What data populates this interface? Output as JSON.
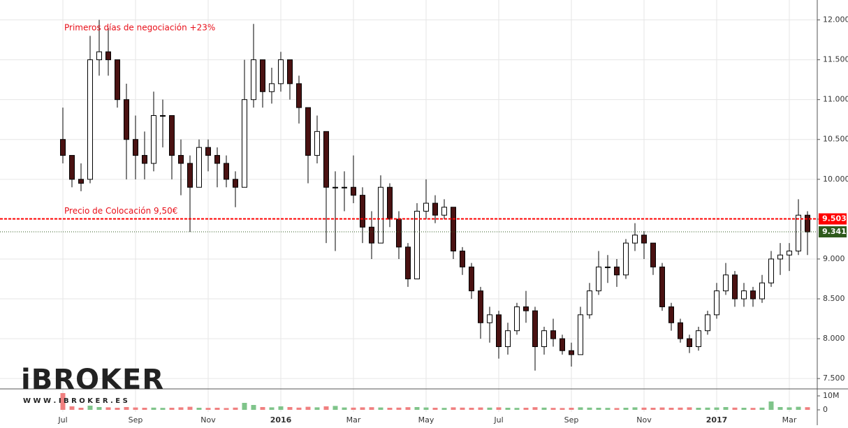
{
  "chart_data": {
    "type": "candlestick",
    "categories": [
      "Jul",
      null,
      null,
      null,
      null,
      null,
      null,
      null,
      "Sep",
      null,
      null,
      null,
      null,
      null,
      null,
      null,
      "Nov",
      null,
      null,
      null,
      null,
      null,
      null,
      null,
      "2016",
      null,
      null,
      null,
      null,
      null,
      null,
      null,
      "Mar",
      null,
      null,
      null,
      null,
      null,
      null,
      null,
      "May",
      null,
      null,
      null,
      null,
      null,
      null,
      null,
      "Jul",
      null,
      null,
      null,
      null,
      null,
      null,
      null,
      "Sep",
      null,
      null,
      null,
      null,
      null,
      null,
      null,
      "Nov",
      null,
      null,
      null,
      null,
      null,
      null,
      null,
      "2017",
      null,
      null,
      null,
      null,
      null,
      null,
      null,
      "Mar",
      null,
      null
    ],
    "open": [
      10.5,
      10.3,
      10.0,
      10.0,
      11.5,
      11.6,
      11.5,
      11.0,
      10.5,
      10.3,
      10.2,
      10.8,
      10.8,
      10.3,
      10.2,
      9.9,
      10.4,
      10.3,
      10.2,
      10.0,
      9.9,
      11.0,
      11.5,
      11.1,
      11.2,
      11.5,
      11.2,
      10.9,
      10.3,
      10.6,
      9.9,
      9.9,
      9.9,
      9.8,
      9.4,
      9.2,
      9.9,
      9.5,
      9.15,
      8.75,
      9.6,
      9.7,
      9.55,
      9.65,
      9.1,
      8.9,
      8.6,
      8.2,
      8.3,
      7.9,
      8.1,
      8.4,
      8.35,
      7.9,
      8.1,
      8.0,
      7.85,
      7.8,
      8.3,
      8.6,
      8.9,
      8.9,
      8.8,
      9.2,
      9.3,
      9.2,
      8.9,
      8.4,
      8.2,
      8.0,
      7.9,
      8.1,
      8.3,
      8.6,
      8.8,
      8.5,
      8.6,
      8.5,
      8.7,
      9.0,
      9.05,
      9.1,
      9.55
    ],
    "high": [
      10.9,
      10.3,
      10.2,
      11.8,
      12.0,
      11.9,
      11.5,
      11.2,
      10.8,
      10.6,
      11.1,
      11.0,
      10.8,
      10.5,
      10.3,
      10.5,
      10.5,
      10.4,
      10.3,
      10.1,
      11.5,
      11.95,
      11.5,
      11.4,
      11.6,
      11.5,
      11.3,
      10.9,
      10.8,
      10.6,
      10.1,
      10.1,
      10.3,
      9.9,
      9.6,
      10.05,
      9.95,
      9.6,
      9.2,
      9.7,
      10.0,
      9.8,
      9.75,
      9.65,
      9.15,
      8.95,
      8.65,
      8.4,
      8.35,
      8.2,
      8.45,
      8.6,
      8.4,
      8.15,
      8.25,
      8.05,
      7.95,
      8.4,
      8.7,
      9.1,
      9.05,
      9.0,
      9.25,
      9.45,
      9.35,
      9.2,
      8.95,
      8.45,
      8.25,
      8.05,
      8.15,
      8.35,
      8.7,
      8.95,
      8.85,
      8.7,
      8.65,
      8.8,
      9.1,
      9.2,
      9.2,
      9.75,
      9.6
    ],
    "low": [
      10.2,
      9.9,
      9.85,
      9.95,
      11.3,
      11.3,
      10.9,
      10.0,
      10.0,
      10.0,
      10.1,
      10.4,
      10.0,
      9.8,
      9.34,
      9.9,
      10.1,
      9.9,
      9.9,
      9.65,
      9.9,
      10.9,
      10.9,
      10.95,
      11.1,
      11.0,
      10.7,
      9.95,
      10.2,
      9.2,
      9.1,
      9.6,
      9.7,
      9.2,
      9.0,
      9.2,
      9.4,
      9.0,
      8.65,
      8.75,
      9.5,
      9.45,
      9.5,
      9.0,
      8.8,
      8.5,
      8.0,
      7.95,
      7.75,
      7.8,
      8.05,
      8.2,
      7.6,
      7.8,
      7.9,
      7.8,
      7.65,
      7.8,
      8.25,
      8.55,
      8.7,
      8.65,
      8.75,
      9.1,
      9.0,
      8.8,
      8.35,
      8.1,
      7.95,
      7.82,
      7.85,
      8.05,
      8.25,
      8.55,
      8.4,
      8.4,
      8.4,
      8.45,
      8.65,
      8.8,
      8.85,
      9.05,
      9.05
    ],
    "close": [
      10.3,
      10.0,
      9.95,
      11.5,
      11.6,
      11.5,
      11.0,
      10.5,
      10.3,
      10.2,
      10.8,
      10.8,
      10.3,
      10.2,
      9.9,
      10.4,
      10.3,
      10.2,
      10.0,
      9.9,
      11.0,
      11.5,
      11.1,
      11.2,
      11.5,
      11.2,
      10.9,
      10.3,
      10.6,
      9.9,
      9.9,
      9.9,
      9.8,
      9.4,
      9.2,
      9.9,
      9.5,
      9.15,
      8.75,
      9.6,
      9.7,
      9.55,
      9.65,
      9.1,
      8.9,
      8.6,
      8.2,
      8.3,
      7.9,
      8.1,
      8.4,
      8.35,
      7.9,
      8.1,
      8.0,
      7.85,
      7.8,
      8.3,
      8.6,
      8.9,
      8.9,
      8.8,
      9.2,
      9.3,
      9.2,
      8.9,
      8.4,
      8.2,
      8.0,
      7.9,
      8.1,
      8.3,
      8.6,
      8.8,
      8.5,
      8.6,
      8.5,
      8.7,
      9.0,
      9.05,
      9.1,
      9.55,
      9.34
    ],
    "volume": [
      12000000,
      2500000,
      1500000,
      3000000,
      2000000,
      1800000,
      1500000,
      2000000,
      1700000,
      1500000,
      1600000,
      1400000,
      1500000,
      1800000,
      2200000,
      1500000,
      1400000,
      1500000,
      1300000,
      1600000,
      5000000,
      3500000,
      2000000,
      1800000,
      2500000,
      2000000,
      1600000,
      2200000,
      1800000,
      2500000,
      2800000,
      1700000,
      1600000,
      1800000,
      1900000,
      1700000,
      1500000,
      1600000,
      1900000,
      2000000,
      1700000,
      1500000,
      1400000,
      1800000,
      1600000,
      1500000,
      1700000,
      1600000,
      1800000,
      1500000,
      1400000,
      1500000,
      1900000,
      1600000,
      1400000,
      1300000,
      1500000,
      1800000,
      1600000,
      1500000,
      1400000,
      1300000,
      1500000,
      1800000,
      1600000,
      1500000,
      1700000,
      1500000,
      1600000,
      1800000,
      1500000,
      1600000,
      1700000,
      2000000,
      1600000,
      1500000,
      1400000,
      1600000,
      6000000,
      2000000,
      1800000,
      2200000,
      1900000
    ],
    "up_color": "#ffffff",
    "down_color": "#4a1212",
    "wick_color": "#000000",
    "volume_up_color": "#7fc48a",
    "volume_down_color": "#f08080",
    "ylim": [
      7.37,
      12.25
    ],
    "yticks": [
      {
        "value": 7.5,
        "label": "7.500"
      },
      {
        "value": 8,
        "label": "8.000"
      },
      {
        "value": 8.5,
        "label": "8.500"
      },
      {
        "value": 9,
        "label": "9.000"
      },
      {
        "value": 9.5,
        "label": "9.500"
      },
      {
        "value": 10,
        "label": "10.000"
      },
      {
        "value": 10.5,
        "label": "10.500"
      },
      {
        "value": 11,
        "label": "11.000"
      },
      {
        "value": 11.5,
        "label": "11.500"
      },
      {
        "value": 12,
        "label": "12.000"
      }
    ],
    "volume_lim": [
      0,
      14000000
    ],
    "volume_ticks": [
      {
        "value": 0,
        "label": "0"
      },
      {
        "value": 10000000,
        "label": "10M"
      }
    ],
    "grid": true,
    "hlines": [
      {
        "value": 9.503,
        "color": "#ff0000",
        "style": "dashed"
      },
      {
        "value": 9.341,
        "color": "#2e5a1c",
        "style": "dotted"
      }
    ],
    "annotations": [
      {
        "text": "Primeros días de negociación +23%",
        "color": "#e8101a",
        "value": 11.9,
        "index": 0
      },
      {
        "text": "Precio de Colocación 9,50€",
        "color": "#e8101a",
        "value": 9.6,
        "index": 0
      }
    ],
    "logo": "iBROKER",
    "website": "W W W . I B R O K E R . E S"
  }
}
